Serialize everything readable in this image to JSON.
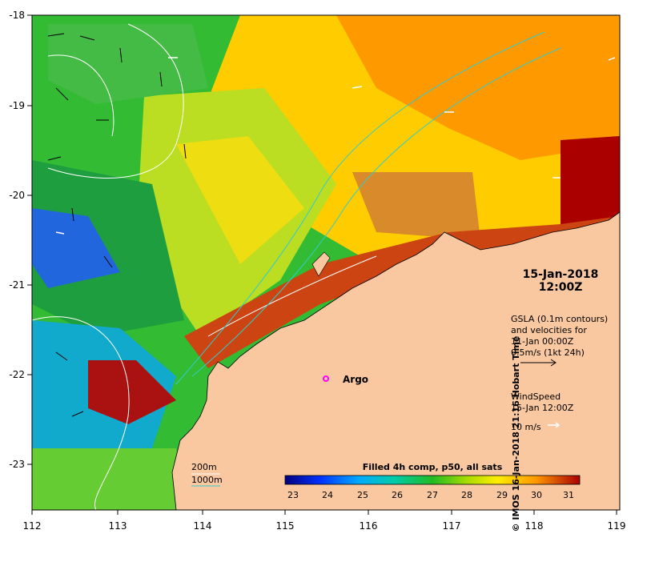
{
  "map": {
    "xticks": [
      "112",
      "113",
      "114",
      "115",
      "116",
      "117",
      "118",
      "119"
    ],
    "yticks": [
      "-18",
      "-19",
      "-20",
      "-21",
      "-22",
      "-23"
    ],
    "date_line1": "15-Jan-2018",
    "date_line2": "12:00Z",
    "gsla": {
      "line1": "GSLA (0.1m contours)",
      "line2": "and velocities for",
      "line3": "11-Jan 00:00Z",
      "line4": "0.5m/s (1kt 24h)"
    },
    "wind": {
      "line1": "WindSpeed",
      "line2": "15-Jan 12:00Z",
      "line3": "10 m/s"
    },
    "argo_label": "Argo",
    "depth_200": "200m",
    "depth_1000": "1000m",
    "colorbar": {
      "title": "Filled 4h comp, p50, all sats",
      "ticks": [
        "23",
        "24",
        "25",
        "26",
        "27",
        "28",
        "29",
        "30",
        "31"
      ]
    },
    "side_credit": "© IMOS 16-Jan-2018 21:16 Hobart Time",
    "colors": {
      "land": "#f9c8a0",
      "argo": "#ff00ff",
      "contour": "#ffffff",
      "isobath_1000": "#33cccc"
    }
  }
}
